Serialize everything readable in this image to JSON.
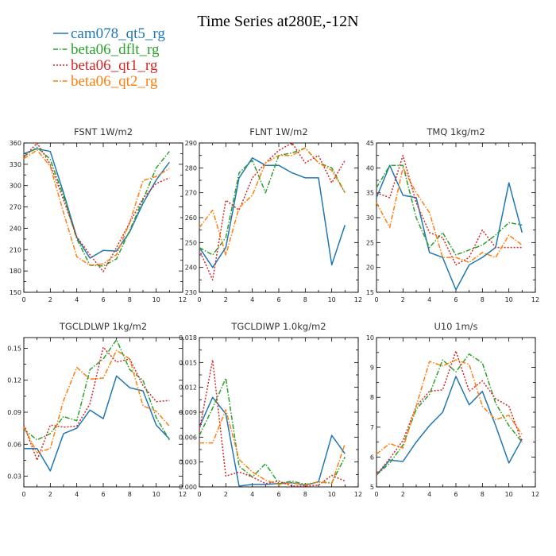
{
  "figure": {
    "title": "Time Series at280E,-12N"
  },
  "chart_data": [
    {
      "type": "line",
      "title": "FSNT   1W/m2",
      "x": [
        0,
        1,
        2,
        3,
        4,
        5,
        6,
        7,
        8,
        9,
        10,
        11
      ],
      "xlim": [
        0,
        12
      ],
      "xticks": [
        0,
        2,
        4,
        6,
        8,
        10,
        12
      ],
      "ylim": [
        150,
        360
      ],
      "yticks": [
        150,
        180,
        210,
        240,
        270,
        300,
        330,
        360
      ],
      "series": [
        {
          "name": "cam078_qt5_rg",
          "color": "#1f77b4",
          "dash": "solid",
          "values": [
            345,
            352,
            348,
            290,
            227,
            198,
            209,
            208,
            235,
            275,
            308,
            333
          ]
        },
        {
          "name": "beta06_dflt_rg",
          "color": "#2ca02c",
          "dash": "dashdot",
          "values": [
            341,
            354,
            337,
            285,
            225,
            188,
            187,
            197,
            237,
            280,
            325,
            348
          ]
        },
        {
          "name": "beta06_qt1_rg",
          "color": "#d62728",
          "dash": "dotted",
          "values": [
            340,
            360,
            330,
            280,
            228,
            203,
            179,
            213,
            248,
            282,
            303,
            311
          ]
        },
        {
          "name": "beta06_qt2_rg",
          "color": "#ff7f0e",
          "dash": "dashdot",
          "values": [
            338,
            350,
            327,
            262,
            200,
            188,
            190,
            203,
            248,
            307,
            313,
            324
          ]
        }
      ]
    },
    {
      "type": "line",
      "title": "FLNT   1W/m2",
      "x": [
        0,
        1,
        2,
        3,
        4,
        5,
        6,
        7,
        8,
        9,
        10,
        11
      ],
      "xlim": [
        0,
        12
      ],
      "xticks": [
        0,
        2,
        4,
        6,
        8,
        10,
        12
      ],
      "ylim": [
        230,
        290
      ],
      "yticks": [
        230,
        240,
        250,
        260,
        270,
        280,
        290
      ],
      "series": [
        {
          "name": "cam078_qt5_rg",
          "color": "#1f77b4",
          "dash": "solid",
          "values": [
            248,
            240,
            248,
            276,
            284,
            281,
            281,
            278,
            276,
            276,
            241,
            257
          ]
        },
        {
          "name": "beta06_dflt_rg",
          "color": "#2ca02c",
          "dash": "dashdot",
          "values": [
            248,
            245,
            252,
            278,
            283,
            270,
            285,
            286,
            288,
            282,
            280,
            270
          ]
        },
        {
          "name": "beta06_qt1_rg",
          "color": "#d62728",
          "dash": "dotted",
          "values": [
            247,
            235,
            267,
            263,
            276,
            282,
            287,
            290,
            282,
            285,
            274,
            283
          ]
        },
        {
          "name": "beta06_qt2_rg",
          "color": "#ff7f0e",
          "dash": "dashdot",
          "values": [
            256,
            263,
            245,
            264,
            269,
            282,
            285,
            285,
            288,
            282,
            279,
            270
          ]
        }
      ]
    },
    {
      "type": "line",
      "title": "TMQ   1kg/m2",
      "x": [
        0,
        1,
        2,
        3,
        4,
        5,
        6,
        7,
        8,
        9,
        10,
        11
      ],
      "xlim": [
        0,
        12
      ],
      "xticks": [
        0,
        2,
        4,
        6,
        8,
        10,
        12
      ],
      "ylim": [
        15,
        45
      ],
      "yticks": [
        15,
        20,
        25,
        30,
        35,
        40,
        45
      ],
      "series": [
        {
          "name": "cam078_qt5_rg",
          "color": "#1f77b4",
          "dash": "solid",
          "values": [
            34,
            40.5,
            34.5,
            34,
            23,
            22,
            15.5,
            20.5,
            22,
            24,
            37,
            27
          ]
        },
        {
          "name": "beta06_dflt_rg",
          "color": "#2ca02c",
          "dash": "dashdot",
          "values": [
            36,
            40.5,
            40.5,
            30,
            24,
            27,
            22.5,
            23.5,
            24.5,
            26.5,
            29,
            28.5
          ]
        },
        {
          "name": "beta06_qt1_rg",
          "color": "#d62728",
          "dash": "dotted",
          "values": [
            35,
            34,
            42.5,
            33,
            27,
            26,
            20.5,
            22,
            27.5,
            24,
            24,
            24
          ]
        },
        {
          "name": "beta06_qt2_rg",
          "color": "#ff7f0e",
          "dash": "dashdot",
          "values": [
            33,
            28,
            40,
            35,
            31,
            22,
            22,
            21,
            23,
            22,
            26.5,
            24.5
          ]
        }
      ]
    },
    {
      "type": "line",
      "title": "TGCLDLWP   1kg/m2",
      "x": [
        0,
        1,
        2,
        3,
        4,
        5,
        6,
        7,
        8,
        9,
        10,
        11
      ],
      "xlim": [
        0,
        12
      ],
      "xticks": [
        0,
        2,
        4,
        6,
        8,
        10,
        12
      ],
      "ylim": [
        0.02,
        0.16
      ],
      "yticks": [
        0.03,
        0.06,
        0.09,
        0.12,
        0.15
      ],
      "series": [
        {
          "name": "cam078_qt5_rg",
          "color": "#1f77b4",
          "dash": "solid",
          "values": [
            0.056,
            0.056,
            0.035,
            0.07,
            0.075,
            0.092,
            0.084,
            0.124,
            0.113,
            0.11,
            0.078,
            0.065
          ]
        },
        {
          "name": "beta06_dflt_rg",
          "color": "#2ca02c",
          "dash": "dashdot",
          "values": [
            0.074,
            0.064,
            0.07,
            0.086,
            0.082,
            0.13,
            0.14,
            0.158,
            0.13,
            0.12,
            0.085,
            0.064
          ]
        },
        {
          "name": "beta06_qt1_rg",
          "color": "#d62728",
          "dash": "dotted",
          "values": [
            0.078,
            0.045,
            0.078,
            0.076,
            0.077,
            0.098,
            0.151,
            0.137,
            0.14,
            0.115,
            0.1,
            0.101
          ]
        },
        {
          "name": "beta06_qt2_rg",
          "color": "#ff7f0e",
          "dash": "dashdot",
          "values": [
            0.076,
            0.052,
            0.056,
            0.101,
            0.132,
            0.121,
            0.122,
            0.148,
            0.14,
            0.096,
            0.091,
            0.077
          ]
        }
      ]
    },
    {
      "type": "line",
      "title": "TGCLDIWP   1.0kg/m2",
      "x": [
        0,
        1,
        2,
        3,
        4,
        5,
        6,
        7,
        8,
        9,
        10,
        11
      ],
      "xlim": [
        0,
        12
      ],
      "xticks": [
        0,
        2,
        4,
        6,
        8,
        10,
        12
      ],
      "ylim": [
        0,
        0.018
      ],
      "yticks": [
        0.0,
        0.003,
        0.006,
        0.009,
        0.012,
        0.015,
        0.018
      ],
      "series": [
        {
          "name": "cam078_qt5_rg",
          "color": "#1f77b4",
          "dash": "solid",
          "values": [
            0.0072,
            0.0108,
            0.0088,
            0.0001,
            0.0003,
            0.0003,
            0.0004,
            0.0005,
            0.0002,
            0.0006,
            0.0062,
            0.004
          ]
        },
        {
          "name": "beta06_dflt_rg",
          "color": "#2ca02c",
          "dash": "dashdot",
          "values": [
            0.0062,
            0.0095,
            0.0131,
            0.0025,
            0.0012,
            0.0028,
            0.0004,
            0.0007,
            0.0003,
            0.0006,
            0.0005,
            0.0036
          ]
        },
        {
          "name": "beta06_qt1_rg",
          "color": "#d62728",
          "dash": "dotted",
          "values": [
            0.0068,
            0.0153,
            0.0013,
            0.0018,
            0.0012,
            0.0004,
            0.0007,
            0.0001,
            0.0001,
            0.0002,
            0.0014,
            0.0007
          ]
        },
        {
          "name": "beta06_qt2_rg",
          "color": "#ff7f0e",
          "dash": "dashdot",
          "values": [
            0.0053,
            0.0053,
            0.0093,
            0.0033,
            0.0018,
            0.0008,
            0.0003,
            0.0005,
            0.0002,
            0.0006,
            0.0004,
            0.0052
          ]
        }
      ]
    },
    {
      "type": "line",
      "title": "U10   1m/s",
      "x": [
        0,
        1,
        2,
        3,
        4,
        5,
        6,
        7,
        8,
        9,
        10,
        11
      ],
      "xlim": [
        0,
        12
      ],
      "xticks": [
        0,
        2,
        4,
        6,
        8,
        10,
        12
      ],
      "ylim": [
        5,
        10
      ],
      "yticks": [
        5,
        6,
        7,
        8,
        9,
        10
      ],
      "series": [
        {
          "name": "cam078_qt5_rg",
          "color": "#1f77b4",
          "dash": "solid",
          "values": [
            5.4,
            5.9,
            5.85,
            6.5,
            7.05,
            7.5,
            8.7,
            7.75,
            8.2,
            7.05,
            5.8,
            6.6
          ]
        },
        {
          "name": "beta06_dflt_rg",
          "color": "#2ca02c",
          "dash": "dashdot",
          "values": [
            5.4,
            5.8,
            6.4,
            7.6,
            8.1,
            9.25,
            8.85,
            9.45,
            9.15,
            7.8,
            7.05,
            6.5
          ]
        },
        {
          "name": "beta06_qt1_rg",
          "color": "#d62728",
          "dash": "dotted",
          "values": [
            5.4,
            5.95,
            6.55,
            7.7,
            8.2,
            8.25,
            9.55,
            8.2,
            8.55,
            7.95,
            7.7,
            6.5
          ]
        },
        {
          "name": "beta06_qt2_rg",
          "color": "#ff7f0e",
          "dash": "dashdot",
          "values": [
            6.1,
            6.45,
            6.3,
            7.7,
            9.2,
            9.05,
            9.25,
            9.1,
            7.7,
            7.25,
            7.4,
            6.75
          ]
        }
      ]
    }
  ]
}
